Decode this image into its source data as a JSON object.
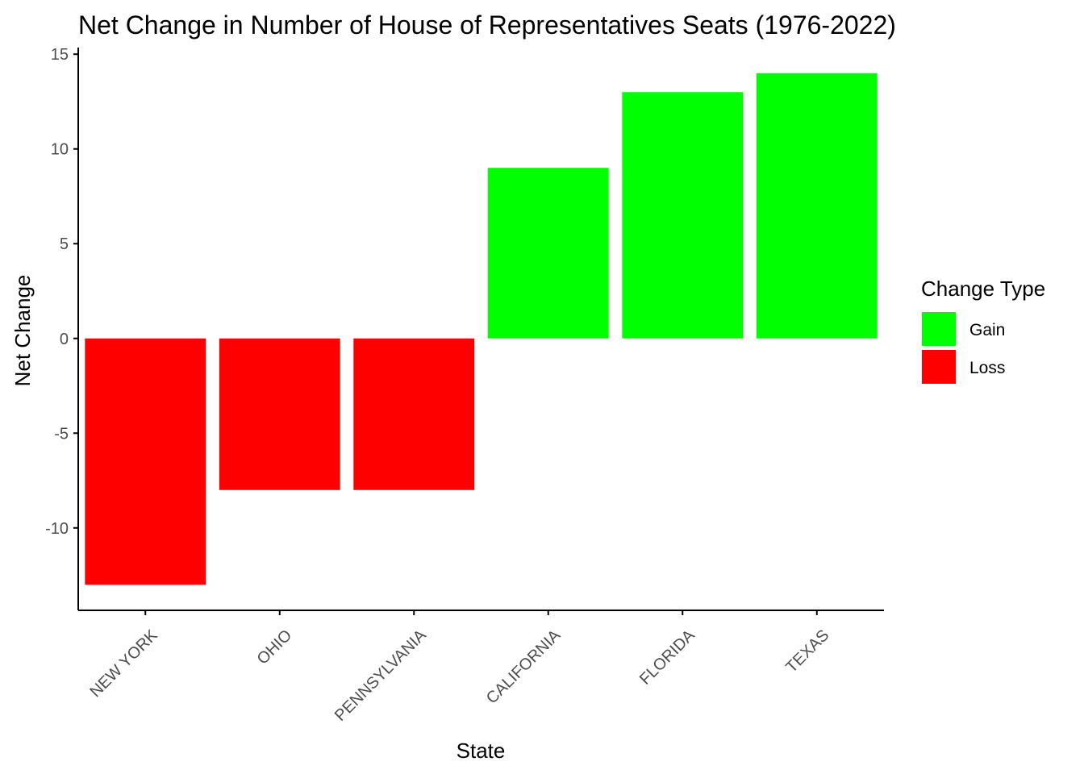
{
  "chart_data": {
    "type": "bar",
    "title": "Net Change in Number of House of Representatives Seats (1976-2022)",
    "xlabel": "State",
    "ylabel": "Net Change",
    "categories": [
      "NEW YORK",
      "OHIO",
      "PENNSYLVANIA",
      "CALIFORNIA",
      "FLORIDA",
      "TEXAS"
    ],
    "values": [
      -13,
      -8,
      -8,
      9,
      13,
      14
    ],
    "change_type": [
      "Loss",
      "Loss",
      "Loss",
      "Gain",
      "Gain",
      "Gain"
    ],
    "ylim": [
      -14.35,
      15.35
    ],
    "yticks": [
      -10,
      -5,
      0,
      5,
      10,
      15
    ],
    "grid": false,
    "legend": {
      "title": "Change Type",
      "placement": "right",
      "entries": [
        {
          "label": "Gain",
          "color": "#00ff00"
        },
        {
          "label": "Loss",
          "color": "#ff0000"
        }
      ]
    },
    "colors": {
      "Gain": "#00ff00",
      "Loss": "#ff0000"
    }
  }
}
